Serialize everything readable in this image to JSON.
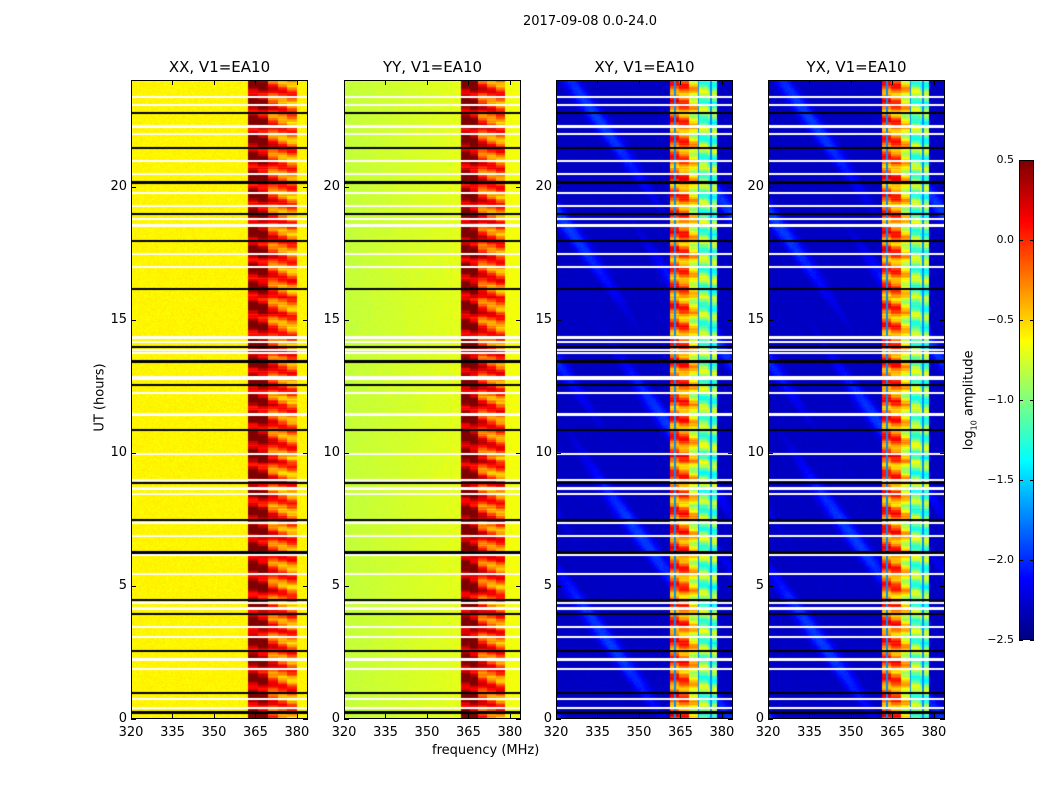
{
  "chart_data": {
    "type": "heatmap",
    "suptitle": "2017-09-08 0.0-24.0",
    "xlabel": "frequency (MHz)",
    "ylabel": "UT (hours)",
    "xlim": [
      320,
      384
    ],
    "ylim": [
      0,
      24
    ],
    "xticks": [
      "320",
      "335",
      "350",
      "365",
      "380"
    ],
    "xtick_values": [
      320,
      335,
      350,
      365,
      380
    ],
    "yticks": [
      "0",
      "5",
      "10",
      "15",
      "20"
    ],
    "ytick_values": [
      0,
      5,
      10,
      15,
      20
    ],
    "panels": [
      {
        "title": "XX, V1=EA10",
        "baseline_log_amp": -0.6,
        "rfi_band_mhz": [
          362,
          380
        ],
        "rfi_log_amp": 0.1
      },
      {
        "title": "YY, V1=EA10",
        "baseline_log_amp": -0.8,
        "rfi_band_mhz": [
          362,
          378
        ],
        "rfi_log_amp": 0.15
      },
      {
        "title": "XY, V1=EA10",
        "baseline_log_amp": -2.3,
        "rfi_band_mhz": [
          361,
          378
        ],
        "rfi_log_amp": -0.6
      },
      {
        "title": "YX, V1=EA10",
        "baseline_log_amp": -2.3,
        "rfi_band_mhz": [
          361,
          378
        ],
        "rfi_log_amp": -0.6
      }
    ],
    "flagged_hours": [
      0.3,
      0.45,
      0.8,
      1.0,
      1.9,
      2.3,
      2.6,
      3.1,
      3.5,
      4.0,
      4.2,
      4.4,
      4.5,
      5.5,
      6.2,
      6.3,
      6.9,
      7.4,
      7.5,
      8.5,
      8.7,
      8.9,
      9.0,
      10.0,
      10.9,
      11.5,
      12.3,
      12.6,
      12.8,
      12.9,
      13.5,
      13.8,
      13.9,
      14.0,
      14.2,
      14.4,
      16.2,
      17.0,
      17.5,
      18.0,
      18.6,
      18.8,
      19.0,
      19.3,
      19.8,
      20.2,
      20.5,
      21.0,
      21.5,
      22.0,
      22.3,
      22.8,
      23.1,
      23.4
    ]
  },
  "colorbar": {
    "label": "log10 amplitude",
    "label_main": "log",
    "label_sub": "10",
    "label_rest": " amplitude",
    "range": [
      -2.5,
      0.5
    ],
    "ticks": [
      "0.5",
      "0.0",
      "−0.5",
      "−1.0",
      "−1.5",
      "−2.0",
      "−2.5"
    ],
    "tick_values": [
      0.5,
      0.0,
      -0.5,
      -1.0,
      -1.5,
      -2.0,
      -2.5
    ],
    "colormap": "jet"
  }
}
